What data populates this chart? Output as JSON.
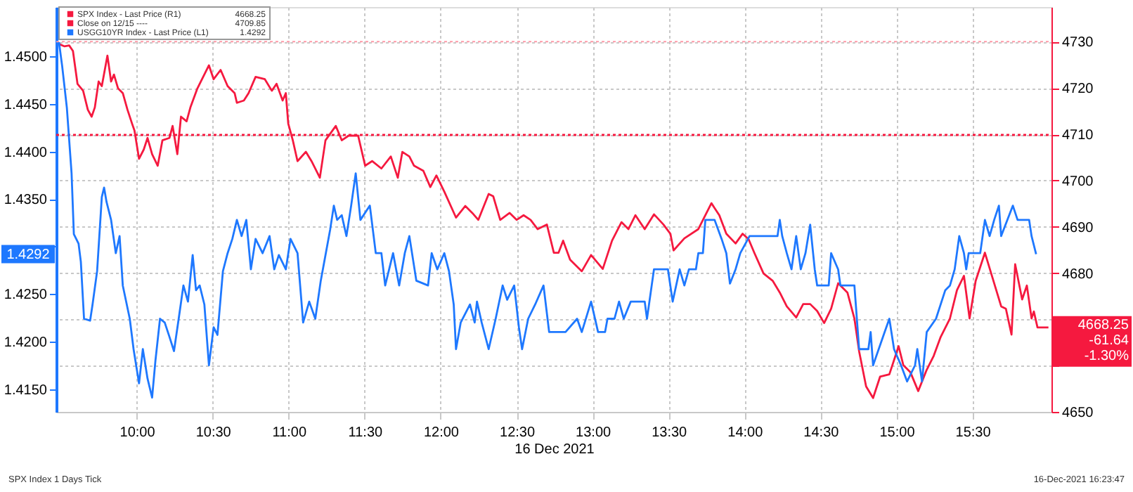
{
  "chart_data": {
    "type": "line",
    "xlabel": "16 Dec 2021",
    "xlim": [
      9.47,
      16.02
    ],
    "xticks": [
      {
        "value": 10,
        "label": "10:00"
      },
      {
        "value": 10.5,
        "label": "10:30"
      },
      {
        "value": 11,
        "label": "11:00"
      },
      {
        "value": 11.5,
        "label": "11:30"
      },
      {
        "value": 12,
        "label": "12:00"
      },
      {
        "value": 12.5,
        "label": "12:30"
      },
      {
        "value": 13,
        "label": "13:00"
      },
      {
        "value": 13.5,
        "label": "13:30"
      },
      {
        "value": 14,
        "label": "14:00"
      },
      {
        "value": 14.5,
        "label": "14:30"
      },
      {
        "value": 15,
        "label": "15:00"
      },
      {
        "value": 15.5,
        "label": "15:30"
      }
    ],
    "ylim": [
      1.4126,
      1.4552
    ],
    "yticks": [
      {
        "value": 1.415,
        "label": "1.4150"
      },
      {
        "value": 1.42,
        "label": "1.4200"
      },
      {
        "value": 1.425,
        "label": "1.4250"
      },
      {
        "value": 1.43,
        "label": null
      },
      {
        "value": 1.435,
        "label": "1.4350"
      },
      {
        "value": 1.44,
        "label": "1.4400"
      },
      {
        "value": 1.445,
        "label": "1.4450"
      },
      {
        "value": 1.45,
        "label": "1.4500"
      }
    ],
    "y2lim": [
      4650,
      4737.5
    ],
    "y2ticks": [
      4650,
      {
        "value": 4660,
        "label": null
      },
      {
        "value": 4670,
        "label": null
      },
      4680,
      4690,
      4700,
      4710,
      4720,
      4730
    ],
    "grid": true,
    "legend": "top left",
    "marker": "none",
    "ref_lines": [
      {
        "axis": "y2",
        "value": 4730,
        "color": "#ff9aa8",
        "line_style": "dotted"
      }
    ],
    "series": [
      {
        "name": "SPX Index - Last Price (R1)",
        "color": "#f5193f",
        "axis": "y2",
        "line_style": "solid",
        "x": [
          9.488,
          9.525,
          9.555,
          9.58,
          9.61,
          9.647,
          9.678,
          9.703,
          9.724,
          9.749,
          9.77,
          9.807,
          9.831,
          9.85,
          9.877,
          9.908,
          9.939,
          9.969,
          9.985,
          10.015,
          10.046,
          10.071,
          10.101,
          10.138,
          10.169,
          10.215,
          10.236,
          10.267,
          10.291,
          10.328,
          10.353,
          10.399,
          10.475,
          10.506,
          10.552,
          10.598,
          10.644,
          10.659,
          10.705,
          10.736,
          10.782,
          10.843,
          10.889,
          10.92,
          10.96,
          10.981,
          10.997,
          11.027,
          11.058,
          11.113,
          11.15,
          11.205,
          11.242,
          11.31,
          11.349,
          11.395,
          11.457,
          11.503,
          11.549,
          11.61,
          11.672,
          11.718,
          11.748,
          11.794,
          11.825,
          11.886,
          11.932,
          11.972,
          12.024,
          12.101,
          12.162,
          12.208,
          12.248,
          12.316,
          12.346,
          12.392,
          12.454,
          12.5,
          12.546,
          12.592,
          12.638,
          12.699,
          12.745,
          12.776,
          12.806,
          12.852,
          12.929,
          12.99,
          13.067,
          13.128,
          13.19,
          13.236,
          13.282,
          13.343,
          13.404,
          13.466,
          13.512,
          13.533,
          13.604,
          13.696,
          13.782,
          13.834,
          13.88,
          13.941,
          13.987,
          14.027,
          14.064,
          14.125,
          14.186,
          14.232,
          14.278,
          14.34,
          14.386,
          14.432,
          14.478,
          14.524,
          14.57,
          14.616,
          14.677,
          14.723,
          14.754,
          14.8,
          14.846,
          14.892,
          14.953,
          15.014,
          15.045,
          15.091,
          15.143,
          15.199,
          15.245,
          15.291,
          15.352,
          15.398,
          15.444,
          15.481,
          15.521,
          15.582,
          15.628,
          15.689,
          15.72,
          15.757,
          15.781,
          15.827,
          15.858,
          15.889,
          15.904,
          15.928,
          16.0
        ],
        "values": [
          4729.5,
          4729.0,
          4729.2,
          4728.0,
          4720.9,
          4719.4,
          4715.3,
          4713.8,
          4715.8,
          4721.4,
          4720.4,
          4727.0,
          4721.4,
          4722.9,
          4719.9,
          4718.9,
          4715.3,
          4712.3,
          4710.8,
          4704.7,
          4706.7,
          4709.2,
          4705.7,
          4703.2,
          4708.7,
          4709.2,
          4711.8,
          4705.7,
          4713.8,
          4712.8,
          4715.8,
          4719.9,
          4724.9,
          4721.9,
          4723.9,
          4720.4,
          4718.9,
          4716.8,
          4717.3,
          4718.9,
          4722.4,
          4721.9,
          4719.4,
          4720.9,
          4717.3,
          4718.9,
          4712.3,
          4708.7,
          4704.2,
          4706.2,
          4704.2,
          4700.6,
          4708.7,
          4711.8,
          4708.7,
          4709.7,
          4709.7,
          4703.2,
          4704.2,
          4702.6,
          4705.2,
          4700.6,
          4706.2,
          4705.2,
          4703.2,
          4702.1,
          4698.6,
          4701.1,
          4697.6,
          4692.0,
          4694.5,
          4693.0,
          4691.5,
          4697.1,
          4696.6,
          4691.5,
          4693.0,
          4691.5,
          4692.5,
          4691.5,
          4689.5,
          4690.5,
          4684.4,
          4684.4,
          4687.0,
          4682.9,
          4680.4,
          4683.9,
          4680.9,
          4687.0,
          4691.0,
          4689.5,
          4692.5,
          4689.5,
          4692.7,
          4690.5,
          4688.5,
          4684.9,
          4687.5,
          4689.5,
          4695.1,
          4692.5,
          4688.5,
          4686.4,
          4688.5,
          4687.3,
          4684.4,
          4679.9,
          4678.3,
          4675.8,
          4672.8,
          4670.4,
          4673.3,
          4673.3,
          4671.8,
          4669.2,
          4672.3,
          4677.8,
          4675.8,
          4670.2,
          4663.1,
          4655.5,
          4653.0,
          4657.6,
          4658.1,
          4664.2,
          4660.1,
          4658.6,
          4654.5,
          4659.1,
          4662.1,
          4666.2,
          4670.2,
          4676.3,
          4679.4,
          4670.2,
          4678.3,
          4684.4,
          4679.4,
          4672.8,
          4672.3,
          4666.7,
          4681.9,
          4674.3,
          4677.3,
          4670.2,
          4671.7,
          4668.25,
          4668.25
        ]
      },
      {
        "name": "Close on 12/15 ----",
        "color": "#f5193f",
        "axis": "y2",
        "line_style": "dotted",
        "x": [
          9.47,
          16.02
        ],
        "values": [
          4709.85,
          4709.85
        ]
      },
      {
        "name": "USGG10YR Index - Last Price (L1)",
        "color": "#1e78ff",
        "axis": "y",
        "line_style": "solid",
        "x": [
          9.488,
          9.509,
          9.54,
          9.571,
          9.586,
          9.617,
          9.632,
          9.653,
          9.693,
          9.709,
          9.739,
          9.77,
          9.785,
          9.801,
          9.831,
          9.862,
          9.887,
          9.908,
          9.954,
          9.979,
          10.015,
          10.04,
          10.071,
          10.101,
          10.123,
          10.153,
          10.184,
          10.215,
          10.245,
          10.276,
          10.307,
          10.337,
          10.368,
          10.39,
          10.414,
          10.445,
          10.475,
          10.506,
          10.531,
          10.567,
          10.598,
          10.629,
          10.659,
          10.69,
          10.721,
          10.751,
          10.782,
          10.828,
          10.874,
          10.905,
          10.935,
          10.981,
          11.012,
          11.058,
          11.095,
          11.135,
          11.175,
          11.211,
          11.273,
          11.297,
          11.319,
          11.349,
          11.38,
          11.411,
          11.441,
          11.472,
          11.534,
          11.573,
          11.61,
          11.635,
          11.687,
          11.727,
          11.764,
          11.794,
          11.84,
          11.917,
          11.941,
          11.978,
          12.024,
          12.055,
          12.086,
          12.101,
          12.132,
          12.193,
          12.224,
          12.239,
          12.27,
          12.316,
          12.362,
          12.408,
          12.438,
          12.484,
          12.515,
          12.536,
          12.576,
          12.622,
          12.677,
          12.714,
          12.806,
          12.822,
          12.898,
          12.929,
          12.99,
          13.036,
          13.082,
          13.098,
          13.144,
          13.174,
          13.205,
          13.251,
          13.343,
          13.358,
          13.389,
          13.404,
          13.496,
          13.527,
          13.573,
          13.604,
          13.634,
          13.68,
          13.696,
          13.726,
          13.742,
          13.803,
          13.849,
          13.88,
          13.904,
          13.941,
          13.972,
          14.033,
          14.217,
          14.232,
          14.248,
          14.278,
          14.309,
          14.34,
          14.37,
          14.401,
          14.432,
          14.462,
          14.478,
          14.554,
          14.57,
          14.616,
          14.631,
          14.723,
          14.754,
          14.815,
          14.83,
          14.846,
          14.922,
          14.953,
          14.984,
          15.03,
          15.07,
          15.122,
          15.137,
          15.168,
          15.199,
          15.26,
          15.321,
          15.352,
          15.383,
          15.413,
          15.444,
          15.459,
          15.475,
          15.551,
          15.582,
          15.613,
          15.643,
          15.674,
          15.689,
          15.766,
          15.797,
          15.873,
          15.889,
          15.919
        ],
        "values": [
          1.4515,
          1.449,
          1.4446,
          1.4377,
          1.4313,
          1.4303,
          1.4284,
          1.4224,
          1.4222,
          1.4239,
          1.4274,
          1.4352,
          1.4362,
          1.4347,
          1.4328,
          1.4293,
          1.4311,
          1.4259,
          1.4224,
          1.4192,
          1.4156,
          1.4192,
          1.4161,
          1.4141,
          1.418,
          1.4224,
          1.422,
          1.4205,
          1.419,
          1.4224,
          1.4259,
          1.4242,
          1.4291,
          1.4254,
          1.4259,
          1.4239,
          1.4175,
          1.4215,
          1.4207,
          1.4274,
          1.4293,
          1.4308,
          1.4328,
          1.4311,
          1.4328,
          1.4276,
          1.4308,
          1.4293,
          1.4311,
          1.4276,
          1.4291,
          1.4276,
          1.4308,
          1.4293,
          1.422,
          1.4242,
          1.4224,
          1.4264,
          1.4318,
          1.4343,
          1.4328,
          1.4333,
          1.4311,
          1.4343,
          1.4377,
          1.4328,
          1.4343,
          1.4293,
          1.4293,
          1.4259,
          1.4293,
          1.4259,
          1.4293,
          1.4311,
          1.4264,
          1.4259,
          1.4293,
          1.4276,
          1.4293,
          1.4274,
          1.4239,
          1.4192,
          1.422,
          1.4239,
          1.422,
          1.4242,
          1.422,
          1.4192,
          1.4224,
          1.4259,
          1.4244,
          1.4259,
          1.4215,
          1.4192,
          1.4224,
          1.4239,
          1.4259,
          1.421,
          1.421,
          1.421,
          1.4224,
          1.421,
          1.4242,
          1.421,
          1.421,
          1.4224,
          1.4224,
          1.4242,
          1.4224,
          1.4242,
          1.4242,
          1.4224,
          1.4259,
          1.4276,
          1.4276,
          1.4242,
          1.4276,
          1.4259,
          1.4276,
          1.4276,
          1.4293,
          1.4293,
          1.4328,
          1.4328,
          1.4308,
          1.4293,
          1.4261,
          1.4276,
          1.4293,
          1.4311,
          1.4311,
          1.4328,
          1.4311,
          1.4293,
          1.4276,
          1.4311,
          1.4276,
          1.4293,
          1.4323,
          1.4276,
          1.4259,
          1.4259,
          1.4293,
          1.4276,
          1.4259,
          1.4259,
          1.4192,
          1.4192,
          1.421,
          1.4175,
          1.421,
          1.4224,
          1.4192,
          1.4175,
          1.4158,
          1.4175,
          1.4192,
          1.4158,
          1.421,
          1.4224,
          1.4254,
          1.4259,
          1.4276,
          1.4311,
          1.4293,
          1.4276,
          1.4293,
          1.4293,
          1.4328,
          1.4311,
          1.4328,
          1.4343,
          1.4311,
          1.4343,
          1.4328,
          1.4328,
          1.4311,
          1.4292
        ]
      }
    ],
    "annotations": [
      "4668.25",
      "4709.85",
      "1.4292",
      "1.4292",
      "4668.25",
      "-61.64",
      "-1.30%",
      "SPX Index 1 Days  Tick",
      "16-Dec-2021 16:23:47"
    ]
  }
}
